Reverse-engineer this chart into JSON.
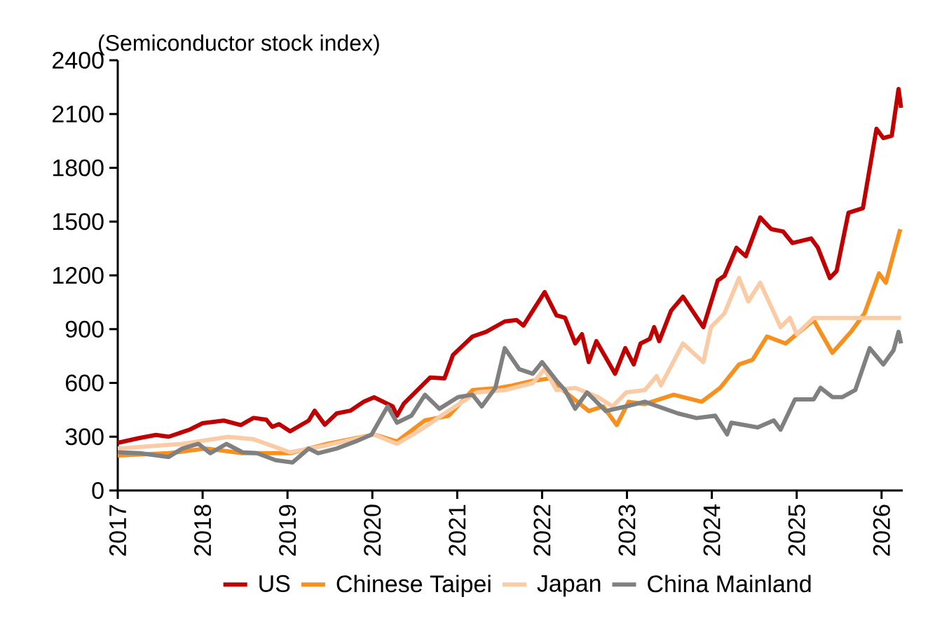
{
  "chart_data": {
    "type": "line",
    "ylabel": "(Semiconductor stock index)",
    "xlim": [
      2017,
      2026.25
    ],
    "xticks": [
      2017,
      2018,
      2019,
      2020,
      2021,
      2022,
      2023,
      2024,
      2025,
      2026
    ],
    "ylim": [
      0,
      2400
    ],
    "yticks": [
      0,
      300,
      600,
      900,
      1200,
      1500,
      1800,
      2100,
      2400
    ],
    "grid": false,
    "legend": "bottom",
    "marker": "none",
    "line_style": "solid",
    "series": [
      {
        "name": "US",
        "color": "#c00000",
        "x": [
          2017.0,
          2017.25,
          2017.45,
          2017.6,
          2017.85,
          2018.0,
          2018.25,
          2018.45,
          2018.6,
          2018.75,
          2018.82,
          2018.9,
          2019.03,
          2019.25,
          2019.32,
          2019.44,
          2019.58,
          2019.74,
          2019.9,
          2020.02,
          2020.24,
          2020.29,
          2020.37,
          2020.68,
          2020.85,
          2020.95,
          2021.18,
          2021.34,
          2021.56,
          2021.7,
          2021.78,
          2022.03,
          2022.17,
          2022.27,
          2022.39,
          2022.47,
          2022.55,
          2022.64,
          2022.86,
          2022.98,
          2023.08,
          2023.16,
          2023.27,
          2023.32,
          2023.38,
          2023.52,
          2023.66,
          2023.9,
          2024.07,
          2024.15,
          2024.29,
          2024.4,
          2024.57,
          2024.7,
          2024.84,
          2024.95,
          2025.17,
          2025.25,
          2025.39,
          2025.47,
          2025.61,
          2025.78,
          2025.94,
          2026.02,
          2026.12,
          2026.2,
          2026.23
        ],
        "values": [
          266,
          292,
          310,
          300,
          340,
          375,
          390,
          365,
          405,
          395,
          355,
          370,
          330,
          390,
          445,
          367,
          430,
          445,
          495,
          520,
          469,
          417,
          484,
          630,
          625,
          756,
          859,
          885,
          943,
          951,
          920,
          1107,
          977,
          964,
          820,
          872,
          716,
          833,
          651,
          794,
          703,
          820,
          846,
          911,
          833,
          1003,
          1081,
          911,
          1172,
          1198,
          1354,
          1307,
          1523,
          1458,
          1445,
          1380,
          1406,
          1354,
          1185,
          1224,
          1549,
          1575,
          2018,
          1966,
          1979,
          2240,
          2135
        ]
      },
      {
        "name": "Chinese Taipei",
        "color": "#f7901e",
        "x": [
          2017.0,
          2017.6,
          2018.04,
          2018.47,
          2019.03,
          2019.47,
          2020.02,
          2020.29,
          2020.62,
          2020.9,
          2021.18,
          2021.5,
          2021.65,
          2021.89,
          2022.09,
          2022.28,
          2022.55,
          2022.72,
          2022.88,
          2023.02,
          2023.21,
          2023.55,
          2023.88,
          2024.1,
          2024.32,
          2024.48,
          2024.65,
          2024.87,
          2025.0,
          2025.2,
          2025.42,
          2025.64,
          2025.8,
          2025.97,
          2026.05,
          2026.22
        ],
        "values": [
          195,
          208,
          234,
          208,
          208,
          260,
          312,
          273,
          391,
          417,
          560,
          573,
          586,
          612,
          625,
          547,
          443,
          469,
          365,
          495,
          482,
          534,
          495,
          573,
          703,
          729,
          859,
          820,
          872,
          950,
          768,
          885,
          989,
          1211,
          1159,
          1458
        ]
      },
      {
        "name": "Japan",
        "color": "#fbcba5",
        "x": [
          2017.0,
          2017.76,
          2018.3,
          2018.6,
          2019.03,
          2019.41,
          2020.02,
          2020.29,
          2020.57,
          2020.9,
          2021.23,
          2021.56,
          2021.89,
          2022.03,
          2022.17,
          2022.39,
          2022.66,
          2022.83,
          2022.99,
          2023.21,
          2023.35,
          2023.4,
          2023.66,
          2023.9,
          2023.99,
          2024.15,
          2024.32,
          2024.43,
          2024.57,
          2024.81,
          2024.92,
          2025.0,
          2025.2,
          2026.23
        ],
        "values": [
          234,
          260,
          299,
          286,
          213,
          247,
          312,
          260,
          339,
          445,
          547,
          560,
          599,
          677,
          560,
          573,
          521,
          469,
          547,
          560,
          638,
          586,
          820,
          716,
          911,
          989,
          1185,
          1055,
          1159,
          911,
          963,
          872,
          963,
          963
        ]
      },
      {
        "name": "China Mainland",
        "color": "#808080",
        "x": [
          2017.0,
          2017.26,
          2017.6,
          2017.76,
          2017.95,
          2018.09,
          2018.28,
          2018.47,
          2018.64,
          2018.86,
          2019.06,
          2019.25,
          2019.36,
          2019.58,
          2019.8,
          2019.99,
          2020.18,
          2020.29,
          2020.46,
          2020.62,
          2020.79,
          2021.01,
          2021.18,
          2021.29,
          2021.45,
          2021.56,
          2021.73,
          2021.89,
          2022.0,
          2022.17,
          2022.27,
          2022.39,
          2022.53,
          2022.75,
          2022.99,
          2023.21,
          2023.6,
          2023.82,
          2024.04,
          2024.18,
          2024.23,
          2024.54,
          2024.73,
          2024.81,
          2024.98,
          2025.2,
          2025.28,
          2025.42,
          2025.54,
          2025.69,
          2025.86,
          2026.02,
          2026.14,
          2026.2,
          2026.23
        ],
        "values": [
          213,
          208,
          187,
          234,
          260,
          208,
          260,
          213,
          208,
          169,
          156,
          234,
          208,
          234,
          273,
          312,
          469,
          378,
          417,
          534,
          456,
          521,
          534,
          469,
          573,
          794,
          677,
          651,
          716,
          612,
          560,
          456,
          547,
          443,
          469,
          495,
          430,
          404,
          417,
          313,
          378,
          352,
          391,
          339,
          508,
          508,
          573,
          521,
          521,
          560,
          794,
          703,
          781,
          885,
          820
        ]
      }
    ]
  }
}
